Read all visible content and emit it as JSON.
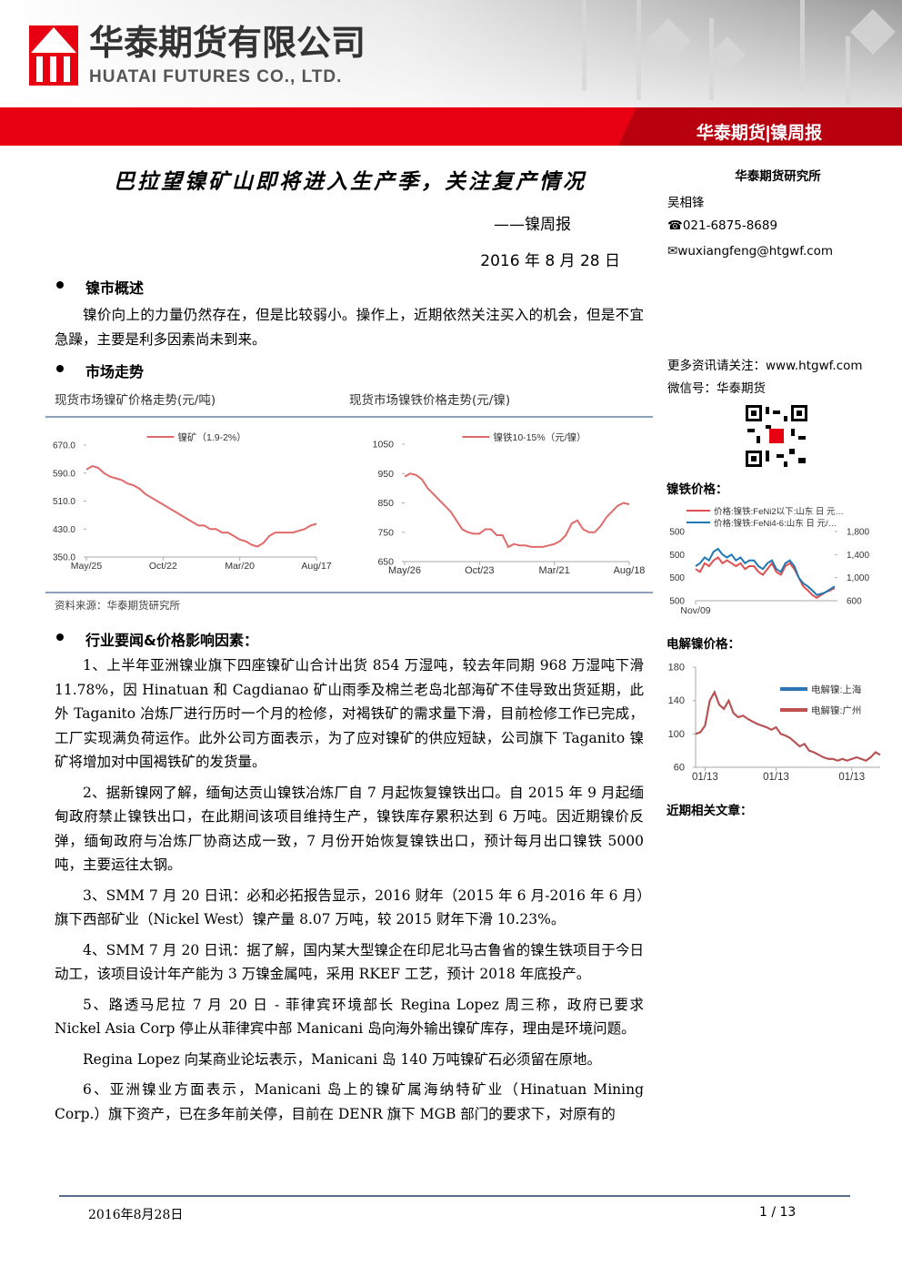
{
  "header": {
    "company_cn": "华泰期货有限公司",
    "company_en": "HUATAI FUTURES CO., LTD.",
    "tag": "华泰期货|镍周报"
  },
  "title": "巴拉望镍矿山即将进入生产季，关注复产情况",
  "subtitle": "——镍周报",
  "date": "2016 年 8 月 28 日",
  "sidebar": {
    "institute": "华泰期货研究所",
    "author": "吴相锋",
    "phone": "021-6875-8689",
    "email": "wuxiangfeng@htgwf.com",
    "more": "更多资讯请关注：www.htgwf.com",
    "wechat": "微信号：华泰期货",
    "nife_heading": "镍铁价格：",
    "ni_heading": "电解镍价格：",
    "related": "近期相关文章："
  },
  "sections": [
    {
      "heading": "镍市概述",
      "paragraphs": [
        "镍价向上的力量仍然存在，但是比较弱小。操作上，近期依然关注买入的机会，但是不宜急躁，主要是利多因素尚未到来。"
      ]
    },
    {
      "heading": "市场走势"
    },
    {
      "heading": "行业要闻&价格影响因素：",
      "paragraphs": [
        "1、上半年亚洲镍业旗下四座镍矿山合计出货 854 万湿吨，较去年同期 968 万湿吨下滑 11.78%，因 Hinatuan 和 Cagdianao 矿山雨季及棉兰老岛北部海矿不佳导致出货延期，此外 Taganito 冶炼厂进行历时一个月的检修，对褐铁矿的需求量下滑，目前检修工作已完成，工厂实现满负荷运作。此外公司方面表示，为了应对镍矿的供应短缺，公司旗下 Taganito 镍矿将增加对中国褐铁矿的发货量。",
        "2、据新镍网了解，缅甸达贡山镍铁冶炼厂自 7 月起恢复镍铁出口。自 2015 年 9 月起缅甸政府禁止镍铁出口，在此期间该项目维持生产，镍铁库存累积达到 6 万吨。因近期镍价反弹，缅甸政府与冶炼厂协商达成一致，7 月份开始恢复镍铁出口，预计每月出口镍铁 5000 吨，主要运往太钢。",
        "3、SMM 7 月 20 日讯：必和必拓报告显示，2016 财年（2015 年 6 月-2016 年 6 月）旗下西部矿业（Nickel West）镍产量 8.07 万吨，较 2015 财年下滑 10.23%。",
        "4、SMM 7 月 20 日讯：据了解，国内某大型镍企在印尼北马古鲁省的镍生铁项目于今日动工，该项目设计年产能为 3 万镍金属吨，采用 RKEF 工艺，预计 2018 年底投产。",
        "5、路透马尼拉 7 月 20 日 - 菲律宾环境部长 Regina Lopez 周三称，政府已要求 Nickel Asia Corp 停止从菲律宾中部 Manicani 岛向海外输出镍矿库存，理由是环境问题。",
        "Regina Lopez 向某商业论坛表示，Manicani 岛 140 万吨镍矿石必须留在原地。",
        "6、亚洲镍业方面表示，Manicani 岛上的镍矿属海纳特矿业（Hinatuan Mining Corp.）旗下资产，已在多年前关停，目前在 DENR 旗下 MGB 部门的要求下，对原有的"
      ]
    }
  ],
  "source": "资料来源：华泰期货研究所",
  "footer": {
    "date": "2016年8月28日",
    "page": "1 / 13"
  },
  "chart_data": [
    {
      "type": "line",
      "title": "现货市场镍矿价格走势(元/吨)",
      "categories": [
        "May/25",
        null,
        null,
        null,
        null,
        null,
        null,
        null,
        null,
        null,
        null,
        null,
        null,
        "Oct/22",
        null,
        null,
        null,
        null,
        null,
        null,
        null,
        null,
        null,
        null,
        null,
        null,
        "Mar/20",
        null,
        null,
        null,
        null,
        null,
        null,
        null,
        null,
        null,
        null,
        null,
        null,
        "Aug/17"
      ],
      "series": [
        {
          "name": "镍矿（1.9-2%）",
          "color": "#e06a6a",
          "values": [
            600,
            610,
            605,
            590,
            580,
            575,
            570,
            560,
            555,
            545,
            530,
            520,
            510,
            500,
            490,
            480,
            470,
            460,
            450,
            440,
            440,
            430,
            430,
            420,
            420,
            410,
            400,
            395,
            385,
            380,
            390,
            410,
            420,
            420,
            420,
            420,
            425,
            430,
            440,
            445
          ]
        }
      ],
      "ylim": [
        350,
        670
      ],
      "yticks": [
        {
          "value": 350,
          "label": "350.0"
        },
        {
          "value": 430,
          "label": "430.0"
        },
        {
          "value": 510,
          "label": "510.0"
        },
        {
          "value": 590,
          "label": "590.0"
        },
        {
          "value": 670,
          "label": "670.0"
        }
      ],
      "grid": false
    },
    {
      "type": "line",
      "title": "现货市场镍铁价格走势(元/镍)",
      "categories": [
        "May/26",
        null,
        null,
        null,
        null,
        null,
        null,
        null,
        null,
        null,
        null,
        null,
        null,
        "Oct/23",
        null,
        null,
        null,
        null,
        null,
        null,
        null,
        null,
        null,
        null,
        null,
        null,
        "Mar/21",
        null,
        null,
        null,
        null,
        null,
        null,
        null,
        null,
        null,
        null,
        null,
        null,
        "Aug/18"
      ],
      "series": [
        {
          "name": "镍铁10-15%（元/镍）",
          "color": "#e06a6a",
          "values": [
            940,
            950,
            945,
            930,
            900,
            880,
            860,
            840,
            820,
            790,
            760,
            750,
            745,
            745,
            760,
            760,
            740,
            740,
            700,
            710,
            705,
            705,
            700,
            700,
            700,
            705,
            710,
            720,
            740,
            780,
            790,
            760,
            750,
            750,
            770,
            800,
            820,
            840,
            850,
            845
          ]
        }
      ],
      "ylim": [
        650,
        1050
      ],
      "yticks": [
        650,
        750,
        850,
        950,
        1050
      ],
      "grid": false
    },
    {
      "type": "line",
      "categories": [
        "Nov/09",
        null,
        null,
        null,
        null,
        null,
        null,
        null,
        null,
        null,
        null,
        null,
        null,
        null,
        null,
        null,
        null,
        null,
        null,
        null,
        null,
        null,
        null,
        null,
        null,
        null,
        null,
        null,
        null,
        null,
        null,
        null
      ],
      "series": [
        {
          "name": "价格:镍铁:FeNi2以下:山东 日 元…",
          "color": "#e05050",
          "values": [
            1150,
            1100,
            1250,
            1200,
            1300,
            1350,
            1250,
            1300,
            1250,
            1200,
            1250,
            1150,
            1200,
            1200,
            1100,
            1050,
            1150,
            1250,
            1100,
            1050,
            1200,
            1250,
            1150,
            1000,
            850,
            780,
            700,
            650,
            700,
            750,
            780,
            820
          ]
        },
        {
          "name": "价格:镍铁:FeNi4-6:山东 日 元/…",
          "color": "#1f77b4",
          "values": [
            1200,
            1250,
            1350,
            1300,
            1450,
            1500,
            1400,
            1350,
            1400,
            1300,
            1350,
            1250,
            1300,
            1300,
            1200,
            1150,
            1250,
            1300,
            1150,
            1100,
            1250,
            1300,
            1200,
            1000,
            900,
            850,
            780,
            700,
            720,
            750,
            800,
            850
          ]
        }
      ],
      "ylim": [
        600,
        1800
      ],
      "yticks": [
        600,
        {
          "value": 1000,
          "label": "1,000"
        },
        {
          "value": 1400,
          "label": "1,400"
        },
        {
          "value": 1800,
          "label": "1,800"
        }
      ],
      "left_tick_labels": [
        "500",
        "500",
        "500",
        "500"
      ],
      "grid": false
    },
    {
      "type": "line",
      "categories": [
        null,
        null,
        "01/13",
        null,
        null,
        null,
        null,
        null,
        null,
        null,
        null,
        null,
        null,
        null,
        null,
        null,
        null,
        "01/13",
        null,
        null,
        null,
        null,
        null,
        null,
        null,
        null,
        null,
        null,
        null,
        null,
        null,
        null,
        null,
        "01/13",
        null,
        null,
        null,
        null,
        null,
        null
      ],
      "series": [
        {
          "name": "电解镍:上海",
          "color": "#2e75b6",
          "values": [
            100,
            102,
            110,
            140,
            150,
            135,
            130,
            140,
            125,
            120,
            122,
            118,
            115,
            112,
            110,
            108,
            105,
            108,
            100,
            98,
            95,
            90,
            85,
            88,
            80,
            78,
            75,
            72,
            70,
            70,
            68,
            70,
            68,
            70,
            72,
            70,
            68,
            72,
            78,
            75
          ]
        },
        {
          "name": "电解镍:广州",
          "color": "#c0504d",
          "values": [
            100,
            102,
            110,
            140,
            150,
            135,
            130,
            140,
            125,
            120,
            122,
            118,
            115,
            112,
            110,
            108,
            105,
            108,
            100,
            98,
            95,
            90,
            85,
            88,
            80,
            78,
            75,
            72,
            70,
            70,
            68,
            70,
            68,
            70,
            72,
            70,
            68,
            72,
            78,
            75
          ]
        }
      ],
      "ylim": [
        60,
        180
      ],
      "yticks": [
        60,
        100,
        140,
        180
      ],
      "grid": false
    }
  ]
}
